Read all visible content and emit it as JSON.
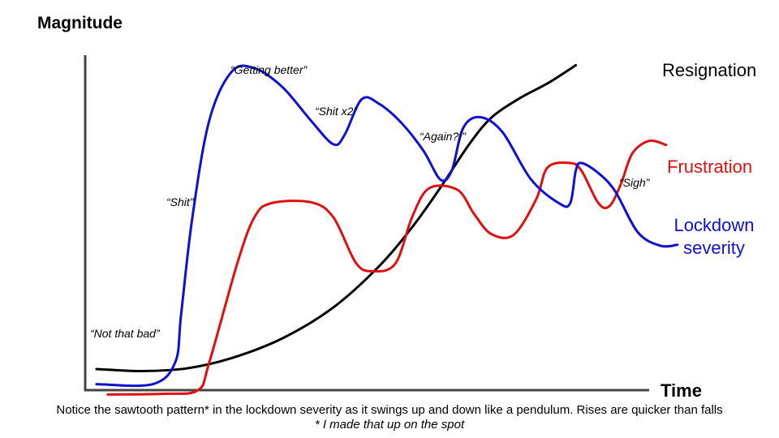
{
  "chart": {
    "y_axis_title": "Magnitude",
    "x_axis_title": "Time",
    "caption": "Notice the sawtooth pattern* in the lockdown severity as it swings up and down like a pendulum. Rises are quicker than falls",
    "footnote": "* I made that up on the spot",
    "labels": {
      "resignation": "Resignation",
      "frustration": "Frustration",
      "lockdown": "Lockdown severity"
    },
    "annotations": {
      "not_that_bad": "“Not that bad”",
      "shit": "“Shit”",
      "getting_better": "“Getting better”",
      "shit_x2": "“Shit x2”",
      "again": "“Again?!”",
      "sigh": "“Sigh”"
    }
  },
  "chart_data": {
    "type": "line",
    "xlabel": "Time",
    "ylabel": "Magnitude",
    "xlim": [
      0,
      100
    ],
    "ylim": [
      0,
      100
    ],
    "series": [
      {
        "name": "Resignation",
        "color": "#000000",
        "points": [
          [
            2,
            6.3
          ],
          [
            10,
            5.7
          ],
          [
            18,
            6.5
          ],
          [
            26,
            9.6
          ],
          [
            35,
            15.5
          ],
          [
            44,
            24.7
          ],
          [
            52,
            36.8
          ],
          [
            58,
            48.7
          ],
          [
            63,
            60.5
          ],
          [
            68,
            73.2
          ],
          [
            72,
            81.3
          ],
          [
            77,
            87.1
          ],
          [
            82,
            91.6
          ],
          [
            87,
            97
          ]
        ]
      },
      {
        "name": "Frustration",
        "color": "#e01010",
        "points": [
          [
            4,
            -1.3
          ],
          [
            14,
            -1.1
          ],
          [
            20,
            0
          ],
          [
            22,
            8.3
          ],
          [
            27,
            38
          ],
          [
            30,
            51.6
          ],
          [
            33,
            55.8
          ],
          [
            40,
            56.1
          ],
          [
            44,
            51.6
          ],
          [
            48,
            38
          ],
          [
            51,
            35.5
          ],
          [
            55,
            37.8
          ],
          [
            58,
            51.8
          ],
          [
            61,
            60.3
          ],
          [
            66,
            59.8
          ],
          [
            69,
            52.5
          ],
          [
            72,
            46.6
          ],
          [
            76,
            46.4
          ],
          [
            80,
            57.1
          ],
          [
            82,
            66.5
          ],
          [
            86,
            67.8
          ],
          [
            88,
            65.5
          ],
          [
            91,
            55.8
          ],
          [
            93,
            55
          ],
          [
            95,
            61.6
          ],
          [
            97,
            70.6
          ],
          [
            100,
            74.4
          ],
          [
            103,
            73.2
          ]
        ]
      },
      {
        "name": "Lockdown severity",
        "color": "#1010d0",
        "points": [
          [
            2,
            1.8
          ],
          [
            12,
            1.8
          ],
          [
            16,
            8.5
          ],
          [
            17,
            22.6
          ],
          [
            19,
            51.6
          ],
          [
            22,
            80.5
          ],
          [
            26,
            95.1
          ],
          [
            30,
            96.1
          ],
          [
            35,
            90.4
          ],
          [
            40,
            80.5
          ],
          [
            44,
            73.4
          ],
          [
            46,
            76.2
          ],
          [
            49,
            86.8
          ],
          [
            52,
            85.6
          ],
          [
            56,
            79.9
          ],
          [
            60,
            71.4
          ],
          [
            63,
            62.8
          ],
          [
            65,
            65.6
          ],
          [
            67,
            78.2
          ],
          [
            70,
            81.5
          ],
          [
            74,
            77
          ],
          [
            79,
            63
          ],
          [
            84,
            55.8
          ],
          [
            86,
            55.8
          ],
          [
            87,
            65.6
          ],
          [
            88,
            67.8
          ],
          [
            91,
            64.8
          ],
          [
            94,
            59.3
          ],
          [
            98,
            47.1
          ],
          [
            102,
            43.1
          ],
          [
            105,
            43.4
          ]
        ]
      }
    ]
  }
}
